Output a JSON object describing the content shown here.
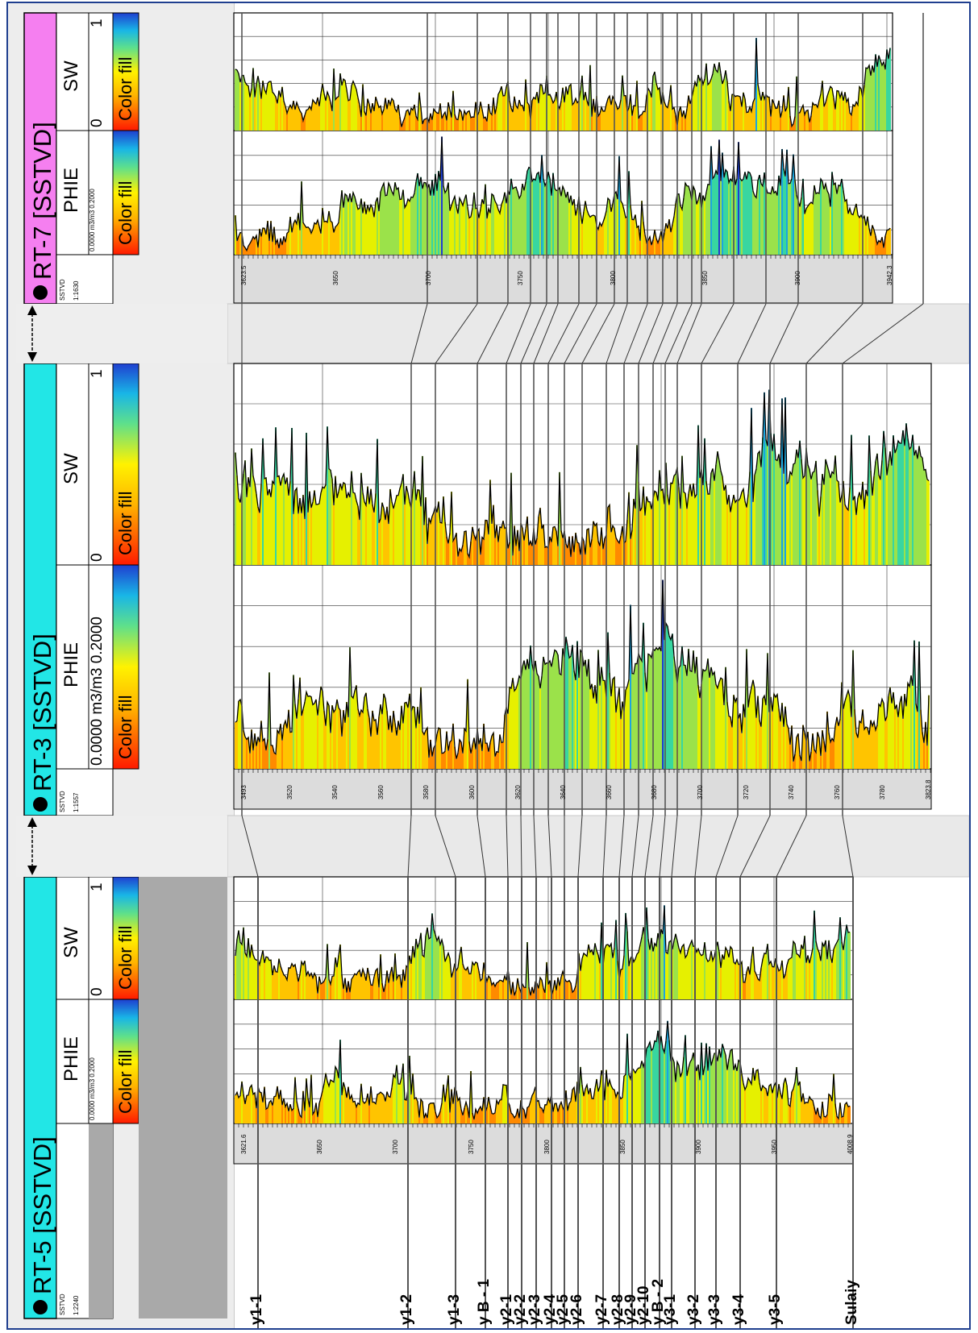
{
  "wells": [
    {
      "name": "RT-5 [SSTVD]",
      "header_color": "#22e6e6",
      "phie": {
        "label": "PHIE",
        "range": "0.0000 m3/m3 0.2000",
        "fill": "Color fill"
      },
      "sw": {
        "label": "SW",
        "min": "0",
        "max": "1",
        "fill": "Color fill"
      },
      "depth": {
        "label": "SSTVD",
        "scale": "1:2240",
        "ticks": [
          "3621.6",
          "3650",
          "3700",
          "3750",
          "3800",
          "3850",
          "3900",
          "3950",
          "4008.9"
        ]
      }
    },
    {
      "name": "RT-3 [SSTVD]",
      "header_color": "#22e6e6",
      "phie": {
        "label": "PHIE",
        "range": "0.0000 m3/m3 0.2000",
        "fill": "Color fill"
      },
      "sw": {
        "label": "SW",
        "min": "0",
        "max": "1",
        "fill": "Color fill"
      },
      "depth": {
        "label": "SSTVD",
        "scale": "1:1557",
        "ticks": [
          "3493",
          "3520",
          "3540",
          "3560",
          "3580",
          "3600",
          "3620",
          "3640",
          "3660",
          "3680",
          "3700",
          "3720",
          "3740",
          "3760",
          "3780",
          "3823.8"
        ]
      }
    },
    {
      "name": "RT-7 [SSTVD]",
      "header_color": "#f57ff0",
      "phie": {
        "label": "PHIE",
        "range": "0.0000 m3/m3 0.2000",
        "fill": "Color fill"
      },
      "sw": {
        "label": "SW",
        "min": "0",
        "max": "1",
        "fill": "Color fill"
      },
      "depth": {
        "label": "SSTVD",
        "scale": "1:1630",
        "ticks": [
          "3623.5",
          "3650",
          "3700",
          "3750",
          "3800",
          "3850",
          "3900",
          "3942.3"
        ]
      }
    }
  ],
  "colors": {
    "frame": "#1f3f8f",
    "header_cyan": "#22e6e6",
    "header_pink": "#f57ff0"
  },
  "chart_data": {
    "type": "well-log-correlation",
    "grid": true,
    "zones": [
      "y1-1",
      "y1-2",
      "y1-3",
      "y B - 1",
      "y2-1",
      "y2-2",
      "y2-3",
      "y2-4",
      "y2-5",
      "y2-6",
      "y2-7",
      "y2-8",
      "y2-9",
      "y2-10",
      "y B - 2",
      "y3-1",
      "y3-2",
      "y3-3",
      "y3-4",
      "y3-5",
      "Sulaiy"
    ]
  }
}
